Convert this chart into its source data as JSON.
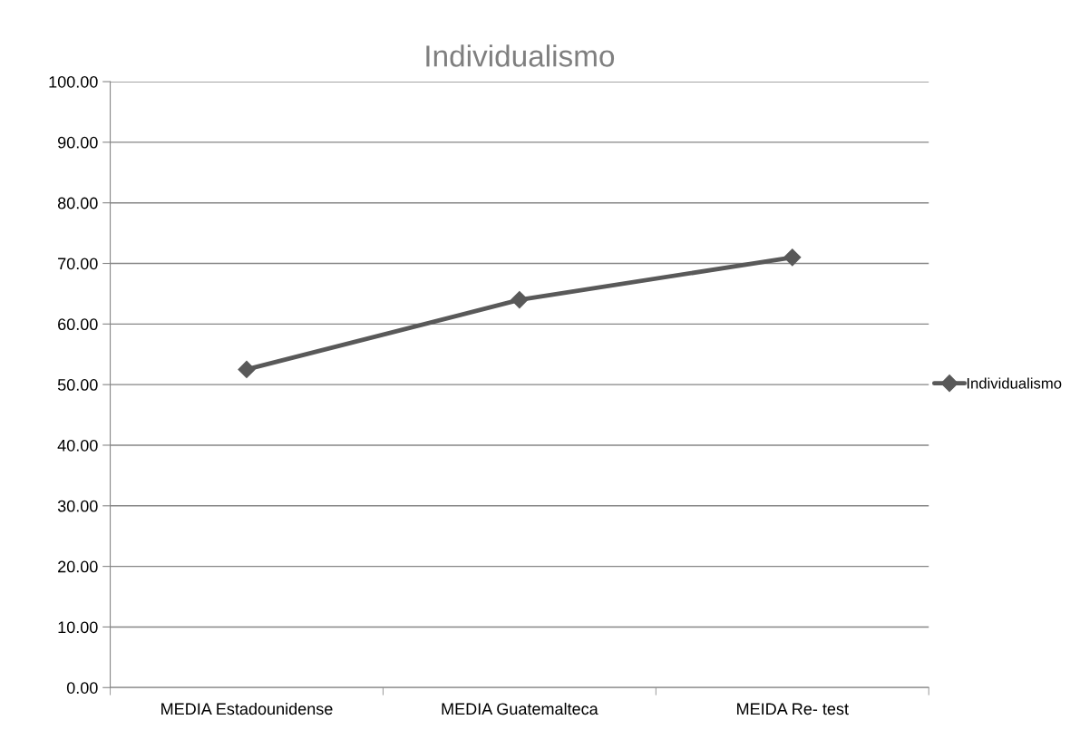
{
  "chart_data": {
    "type": "line",
    "title": "Individualismo",
    "categories": [
      "MEDIA Estadounidense",
      "MEDIA Guatemalteca",
      "MEIDA Re- test"
    ],
    "series": [
      {
        "name": "Individualismo",
        "color": "#595959",
        "values": [
          52.5,
          64.0,
          71.0
        ]
      }
    ],
    "ylim": [
      0,
      100
    ],
    "yticks": [
      {
        "value": 0,
        "label": "0.00"
      },
      {
        "value": 10,
        "label": "10.00"
      },
      {
        "value": 20,
        "label": "20.00"
      },
      {
        "value": 30,
        "label": "30.00"
      },
      {
        "value": 40,
        "label": "40.00"
      },
      {
        "value": 50,
        "label": "50.00"
      },
      {
        "value": 60,
        "label": "60.00"
      },
      {
        "value": 70,
        "label": "70.00"
      },
      {
        "value": 80,
        "label": "80.00"
      },
      {
        "value": 90,
        "label": "90.00"
      },
      {
        "value": 100,
        "label": "100.00"
      }
    ],
    "grid": "y",
    "legend": "right",
    "marker": "diamond",
    "line_style": "solid"
  }
}
